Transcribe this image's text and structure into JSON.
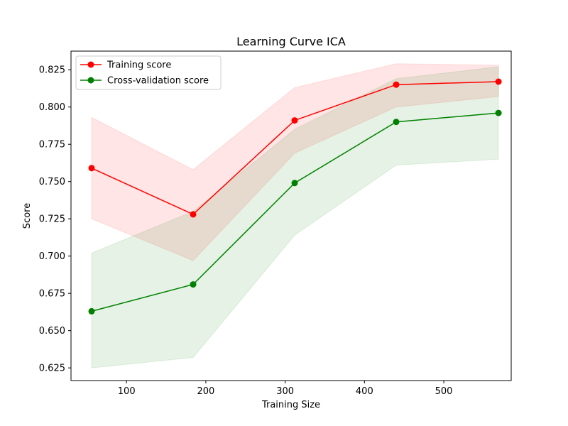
{
  "chart_data": {
    "type": "line",
    "title": "Learning Curve ICA",
    "xlabel": "Training Size",
    "ylabel": "Score",
    "xlim": [
      30,
      585
    ],
    "ylim": [
      0.6165,
      0.8375
    ],
    "xticks": [
      100,
      200,
      300,
      400,
      500
    ],
    "yticks": [
      0.625,
      0.65,
      0.675,
      0.7,
      0.725,
      0.75,
      0.775,
      0.8,
      0.825
    ],
    "ytick_labels": [
      "0.625",
      "0.650",
      "0.675",
      "0.700",
      "0.725",
      "0.750",
      "0.775",
      "0.800",
      "0.825"
    ],
    "grid": false,
    "legend_position": "top-left",
    "x": [
      56,
      184,
      312,
      440,
      569
    ],
    "series": [
      {
        "name": "Training score",
        "color": "#ff0000",
        "values": [
          0.759,
          0.728,
          0.791,
          0.815,
          0.817
        ],
        "band_upper": [
          0.793,
          0.758,
          0.813,
          0.829,
          0.828
        ],
        "band_lower": [
          0.725,
          0.697,
          0.769,
          0.8,
          0.807
        ]
      },
      {
        "name": "Cross-validation score",
        "color": "#008000",
        "values": [
          0.663,
          0.681,
          0.749,
          0.79,
          0.796
        ],
        "band_upper": [
          0.702,
          0.73,
          0.785,
          0.819,
          0.827
        ],
        "band_lower": [
          0.625,
          0.632,
          0.714,
          0.761,
          0.765
        ]
      }
    ]
  }
}
